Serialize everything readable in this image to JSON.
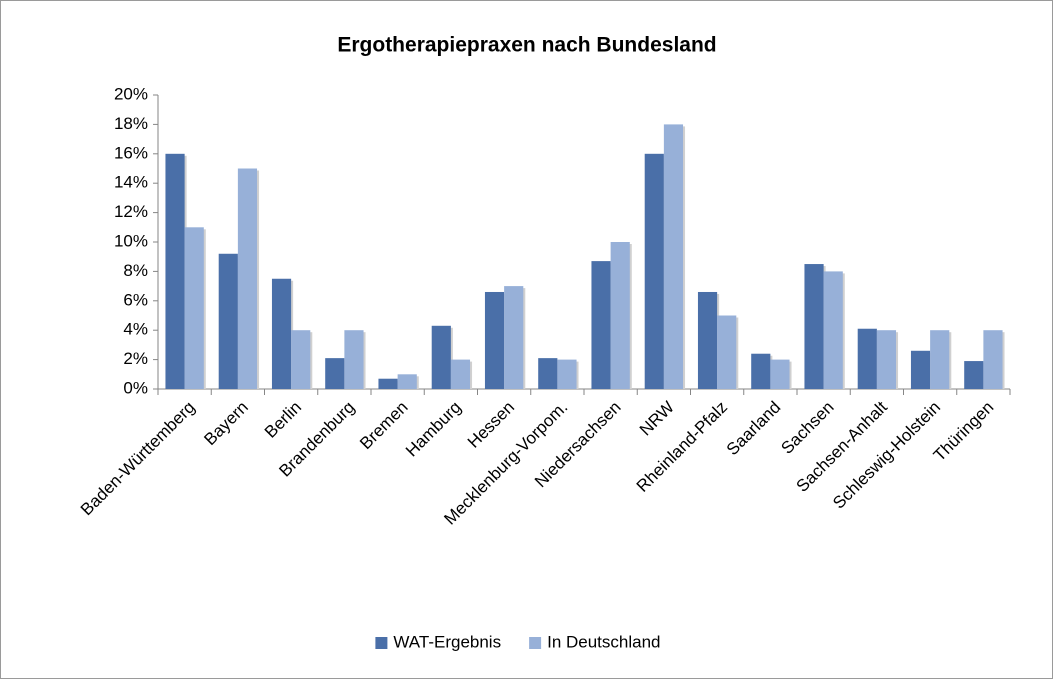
{
  "chart_data": {
    "type": "bar",
    "title": "Ergotherapiepraxen nach Bundesland",
    "categories": [
      "Baden-Württemberg",
      "Bayern",
      "Berlin",
      "Brandenburg",
      "Bremen",
      "Hamburg",
      "Hessen",
      "Mecklenburg-Vorpom.",
      "Niedersachsen",
      "NRW",
      "Rheinland-Pfalz",
      "Saarland",
      "Sachsen",
      "Sachsen-Anhalt",
      "Schleswig-Holstein",
      "Thüringen"
    ],
    "series": [
      {
        "name": "WAT-Ergebnis",
        "color": "#4a6fa8",
        "values": [
          16,
          9.2,
          7.5,
          2.1,
          0.7,
          4.3,
          6.6,
          2.1,
          8.7,
          16,
          6.6,
          2.4,
          8.5,
          4.1,
          2.6,
          1.9
        ]
      },
      {
        "name": "In Deutschland",
        "color": "#97b0d8",
        "values": [
          11,
          15,
          4,
          4,
          1,
          2,
          7,
          2,
          10,
          18,
          5,
          2,
          8,
          4,
          4,
          4
        ]
      }
    ],
    "ylim": [
      0,
      20
    ],
    "yticks": [
      {
        "value": 0,
        "label": "0%"
      },
      {
        "value": 2,
        "label": "2%"
      },
      {
        "value": 4,
        "label": "4%"
      },
      {
        "value": 6,
        "label": "6%"
      },
      {
        "value": 8,
        "label": "8%"
      },
      {
        "value": 10,
        "label": "10%"
      },
      {
        "value": 12,
        "label": "12%"
      },
      {
        "value": 14,
        "label": "14%"
      },
      {
        "value": 16,
        "label": "16%"
      },
      {
        "value": 18,
        "label": "18%"
      },
      {
        "value": 20,
        "label": "20%"
      }
    ],
    "grid": false,
    "legend": "bottom"
  }
}
